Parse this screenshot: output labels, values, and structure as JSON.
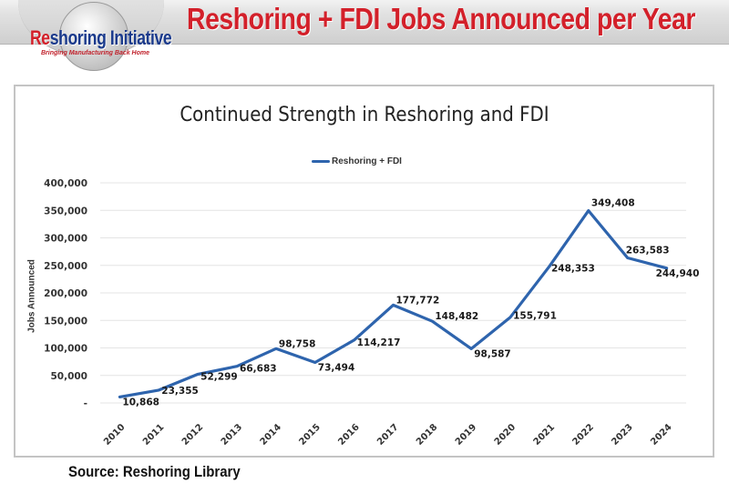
{
  "banner": {
    "title": "Reshoring + FDI Jobs Announced per Year"
  },
  "logo": {
    "prefix": "Re",
    "name_rest": "shoring Initiative",
    "tagline": "Bringing Manufacturing Back Home"
  },
  "source": "Source: Reshoring Library",
  "colors": {
    "series": "#2e64ad",
    "banner_title": "#d3202a",
    "gridline": "#e4e4e4",
    "border": "#c4c4c4"
  },
  "chart_data": {
    "type": "line",
    "title": "Continued Strength in Reshoring and FDI",
    "xlabel": "",
    "ylabel": "Jobs Announced",
    "legend": [
      "Reshoring + FDI"
    ],
    "legend_position": "top",
    "grid": true,
    "ylim": [
      0,
      400000
    ],
    "yticks": [
      "-",
      "50,000",
      "100,000",
      "150,000",
      "200,000",
      "250,000",
      "300,000",
      "350,000",
      "400,000"
    ],
    "categories": [
      "2010",
      "2011",
      "2012",
      "2013",
      "2014",
      "2015",
      "2016",
      "2017",
      "2018",
      "2019",
      "2020",
      "2021",
      "2022",
      "2023",
      "2024"
    ],
    "series": [
      {
        "name": "Reshoring + FDI",
        "values": [
          10868,
          23355,
          52299,
          66683,
          98758,
          73494,
          114217,
          177772,
          148482,
          98587,
          155791,
          248353,
          349408,
          263583,
          244940
        ],
        "labels": [
          "10,868",
          "23,355",
          "52,299",
          "66,683",
          "98,758",
          "73,494",
          "114,217",
          "177,772",
          "148,482",
          "98,587",
          "155,791",
          "248,353",
          "349,408",
          "263,583",
          "244,940"
        ]
      }
    ]
  }
}
